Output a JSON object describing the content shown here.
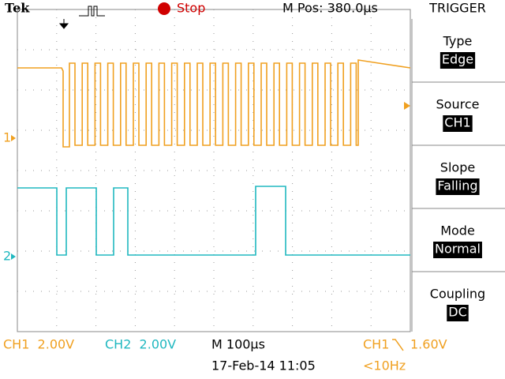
{
  "header": {
    "brand": "Tek",
    "state": "Stop",
    "position": "M Pos: 380.0µs"
  },
  "menu": {
    "title": "TRIGGER",
    "items": [
      {
        "label": "Type",
        "value": "Edge"
      },
      {
        "label": "Source",
        "value": "CH1"
      },
      {
        "label": "Slope",
        "value": "Falling"
      },
      {
        "label": "Mode",
        "value": "Normal"
      },
      {
        "label": "Coupling",
        "value": "DC"
      }
    ]
  },
  "markers": {
    "ch1": "1",
    "ch2": "2"
  },
  "footer": {
    "ch1_scale": "CH1  2.00V",
    "ch2_scale": "CH2  2.00V",
    "timebase": "M 100µs",
    "trigger_source": "CH1",
    "trigger_level": "1.60V",
    "date": "17-Feb-14 11:05",
    "frequency": "<10Hz"
  }
}
